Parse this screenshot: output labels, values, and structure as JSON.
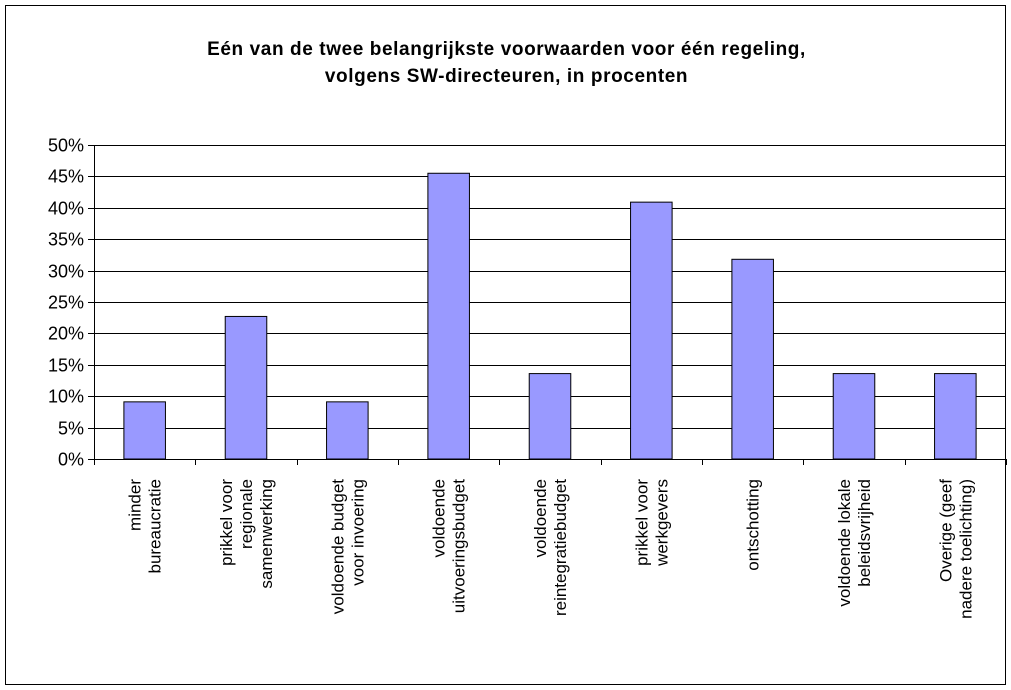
{
  "chart_data": {
    "type": "bar",
    "title": "Eén van de twee belangrijkste voorwaarden voor één regeling,\nvolgens SW-directeuren, in procenten",
    "xlabel": "",
    "ylabel": "",
    "ylim": [
      0,
      50
    ],
    "yticks": [
      "0%",
      "5%",
      "10%",
      "15%",
      "20%",
      "25%",
      "30%",
      "35%",
      "40%",
      "45%",
      "50%"
    ],
    "grid": true,
    "categories": [
      [
        "minder",
        "bureaucratie"
      ],
      [
        "prikkel voor",
        "regionale",
        "samenwerking"
      ],
      [
        "voldoende budget",
        "voor invoering"
      ],
      [
        "voldoende",
        "uitvoeringsbudget"
      ],
      [
        "voldoende",
        "reintegratiebudget"
      ],
      [
        "prikkel voor",
        "werkgevers"
      ],
      [
        "ontschotting"
      ],
      [
        "voldoende lokale",
        "beleidsvrijheid"
      ],
      [
        "Overige (geef",
        "nadere toelichting)"
      ]
    ],
    "values": [
      9.1,
      22.7,
      9.1,
      45.5,
      13.6,
      40.9,
      31.8,
      13.6,
      13.6
    ],
    "colors": {
      "bar_fill": "#9999ff",
      "bar_stroke": "#000000",
      "grid": "#000000"
    }
  }
}
